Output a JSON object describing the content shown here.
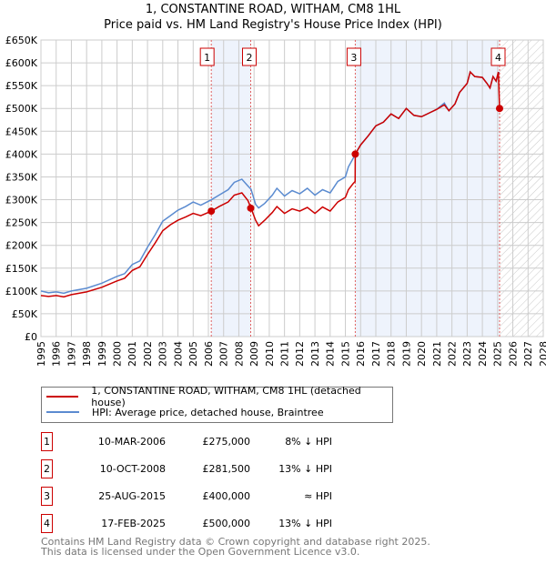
{
  "chart_data": {
    "type": "line",
    "title": "1, CONSTANTINE ROAD, WITHAM, CM8 1HL",
    "subtitle": "Price paid vs. HM Land Registry's House Price Index (HPI)",
    "xlim": [
      1995,
      2028
    ],
    "ylim": [
      0,
      650000
    ],
    "x_ticks": [
      "1995",
      "1996",
      "1997",
      "1998",
      "1999",
      "2000",
      "2001",
      "2002",
      "2003",
      "2004",
      "2005",
      "2006",
      "2007",
      "2008",
      "2009",
      "2010",
      "2011",
      "2012",
      "2013",
      "2014",
      "2015",
      "2016",
      "2017",
      "2018",
      "2019",
      "2020",
      "2021",
      "2022",
      "2023",
      "2024",
      "2025",
      "2026",
      "2027",
      "2028"
    ],
    "y_ticks": [
      {
        "v": 0,
        "label": "£0"
      },
      {
        "v": 50000,
        "label": "£50K"
      },
      {
        "v": 100000,
        "label": "£100K"
      },
      {
        "v": 150000,
        "label": "£150K"
      },
      {
        "v": 200000,
        "label": "£200K"
      },
      {
        "v": 250000,
        "label": "£250K"
      },
      {
        "v": 300000,
        "label": "£300K"
      },
      {
        "v": 350000,
        "label": "£350K"
      },
      {
        "v": 400000,
        "label": "£400K"
      },
      {
        "v": 450000,
        "label": "£450K"
      },
      {
        "v": 500000,
        "label": "£500K"
      },
      {
        "v": 550000,
        "label": "£550K"
      },
      {
        "v": 600000,
        "label": "£600K"
      },
      {
        "v": 650000,
        "label": "£650K"
      }
    ],
    "grid": true,
    "series": [
      {
        "name": "1, CONSTANTINE ROAD, WITHAM, CM8 1HL (detached house)",
        "color": "#cc0000",
        "points": [
          [
            1995,
            90000
          ],
          [
            1995.5,
            88000
          ],
          [
            1996,
            90000
          ],
          [
            1996.5,
            87000
          ],
          [
            1997,
            92000
          ],
          [
            1998,
            98000
          ],
          [
            1999,
            108000
          ],
          [
            2000,
            122000
          ],
          [
            2000.5,
            128000
          ],
          [
            2001,
            145000
          ],
          [
            2001.5,
            153000
          ],
          [
            2002,
            180000
          ],
          [
            2002.5,
            205000
          ],
          [
            2003,
            232000
          ],
          [
            2003.5,
            245000
          ],
          [
            2004,
            255000
          ],
          [
            2004.5,
            262000
          ],
          [
            2005,
            270000
          ],
          [
            2005.5,
            265000
          ],
          [
            2006.2,
            275000
          ],
          [
            2006.7,
            285000
          ],
          [
            2007.3,
            295000
          ],
          [
            2007.7,
            310000
          ],
          [
            2008.2,
            315000
          ],
          [
            2008.6,
            298000
          ],
          [
            2008.8,
            281500
          ],
          [
            2009.1,
            255000
          ],
          [
            2009.3,
            243000
          ],
          [
            2009.7,
            255000
          ],
          [
            2010.2,
            272000
          ],
          [
            2010.5,
            285000
          ],
          [
            2011,
            270000
          ],
          [
            2011.5,
            280000
          ],
          [
            2012,
            275000
          ],
          [
            2012.5,
            283000
          ],
          [
            2013,
            270000
          ],
          [
            2013.5,
            284000
          ],
          [
            2014,
            275000
          ],
          [
            2014.5,
            295000
          ],
          [
            2015,
            305000
          ],
          [
            2015.2,
            322000
          ],
          [
            2015.5,
            335000
          ],
          [
            2015.64,
            340000
          ],
          [
            2015.65,
            400000
          ],
          [
            2016,
            420000
          ],
          [
            2016.5,
            440000
          ],
          [
            2017,
            462000
          ],
          [
            2017.5,
            470000
          ],
          [
            2018,
            488000
          ],
          [
            2018.5,
            478000
          ],
          [
            2019,
            500000
          ],
          [
            2019.5,
            485000
          ],
          [
            2020,
            482000
          ],
          [
            2020.5,
            490000
          ],
          [
            2021,
            498000
          ],
          [
            2021.5,
            508000
          ],
          [
            2021.8,
            495000
          ],
          [
            2022.2,
            510000
          ],
          [
            2022.5,
            535000
          ],
          [
            2023,
            555000
          ],
          [
            2023.2,
            580000
          ],
          [
            2023.5,
            570000
          ],
          [
            2024,
            568000
          ],
          [
            2024.3,
            555000
          ],
          [
            2024.5,
            545000
          ],
          [
            2024.7,
            570000
          ],
          [
            2024.9,
            560000
          ],
          [
            2025.05,
            580000
          ],
          [
            2025.13,
            500000
          ]
        ]
      },
      {
        "name": "HPI: Average price, detached house, Braintree",
        "color": "#5b8bd0",
        "points": [
          [
            1995,
            100000
          ],
          [
            1995.5,
            96000
          ],
          [
            1996,
            98000
          ],
          [
            1996.5,
            95000
          ],
          [
            1997,
            100000
          ],
          [
            1998,
            106000
          ],
          [
            1999,
            117000
          ],
          [
            2000,
            132000
          ],
          [
            2000.5,
            138000
          ],
          [
            2001,
            158000
          ],
          [
            2001.5,
            166000
          ],
          [
            2002,
            196000
          ],
          [
            2002.5,
            223000
          ],
          [
            2003,
            253000
          ],
          [
            2003.5,
            265000
          ],
          [
            2004,
            277000
          ],
          [
            2004.5,
            285000
          ],
          [
            2005,
            295000
          ],
          [
            2005.5,
            288000
          ],
          [
            2006.2,
            300000
          ],
          [
            2006.7,
            310000
          ],
          [
            2007.3,
            322000
          ],
          [
            2007.7,
            338000
          ],
          [
            2008.2,
            345000
          ],
          [
            2008.6,
            330000
          ],
          [
            2008.8,
            323000
          ],
          [
            2009.1,
            290000
          ],
          [
            2009.3,
            282000
          ],
          [
            2009.7,
            292000
          ],
          [
            2010.2,
            310000
          ],
          [
            2010.5,
            325000
          ],
          [
            2011,
            308000
          ],
          [
            2011.5,
            320000
          ],
          [
            2012,
            313000
          ],
          [
            2012.5,
            325000
          ],
          [
            2013,
            310000
          ],
          [
            2013.5,
            322000
          ],
          [
            2014,
            315000
          ],
          [
            2014.5,
            340000
          ],
          [
            2015,
            350000
          ],
          [
            2015.2,
            372000
          ],
          [
            2015.5,
            390000
          ],
          [
            2015.65,
            400000
          ],
          [
            2016,
            420000
          ],
          [
            2016.5,
            440000
          ],
          [
            2017,
            462000
          ],
          [
            2017.5,
            470000
          ],
          [
            2018,
            488000
          ],
          [
            2018.5,
            478000
          ],
          [
            2019,
            500000
          ],
          [
            2019.5,
            485000
          ],
          [
            2020,
            482000
          ],
          [
            2020.5,
            490000
          ],
          [
            2021,
            498000
          ],
          [
            2021.5,
            512000
          ],
          [
            2021.8,
            495000
          ],
          [
            2022.2,
            510000
          ],
          [
            2022.5,
            535000
          ],
          [
            2023,
            555000
          ],
          [
            2023.2,
            580000
          ],
          [
            2023.5,
            570000
          ],
          [
            2024,
            568000
          ],
          [
            2024.3,
            555000
          ],
          [
            2024.5,
            545000
          ],
          [
            2024.7,
            570000
          ],
          [
            2024.9,
            560000
          ],
          [
            2025.1,
            580000
          ]
        ]
      }
    ],
    "sales": [
      {
        "label": "1",
        "x": 2006.19,
        "y": 275000
      },
      {
        "label": "2",
        "x": 2008.78,
        "y": 281500
      },
      {
        "label": "3",
        "x": 2015.65,
        "y": 400000
      },
      {
        "label": "4",
        "x": 2025.13,
        "y": 500000
      }
    ],
    "shaded_ranges": [
      [
        2006.19,
        2008.78
      ],
      [
        2015.65,
        2025.13
      ]
    ],
    "forecast_hatch_from": 2025.13,
    "legend_placement": "below"
  },
  "legend": [
    {
      "label": "1, CONSTANTINE ROAD, WITHAM, CM8 1HL (detached house)",
      "color": "#cc0000"
    },
    {
      "label": "HPI: Average price, detached house, Braintree",
      "color": "#5b8bd0"
    }
  ],
  "transactions": [
    {
      "num": "1",
      "date": "10-MAR-2006",
      "price": "£275,000",
      "relation": "8% ↓ HPI"
    },
    {
      "num": "2",
      "date": "10-OCT-2008",
      "price": "£281,500",
      "relation": "13% ↓ HPI"
    },
    {
      "num": "3",
      "date": "25-AUG-2015",
      "price": "£400,000",
      "relation": "≈ HPI"
    },
    {
      "num": "4",
      "date": "17-FEB-2025",
      "price": "£500,000",
      "relation": "13% ↓ HPI"
    }
  ],
  "footer": {
    "line1": "Contains HM Land Registry data © Crown copyright and database right 2025.",
    "line2": "This data is licensed under the Open Government Licence v3.0."
  }
}
